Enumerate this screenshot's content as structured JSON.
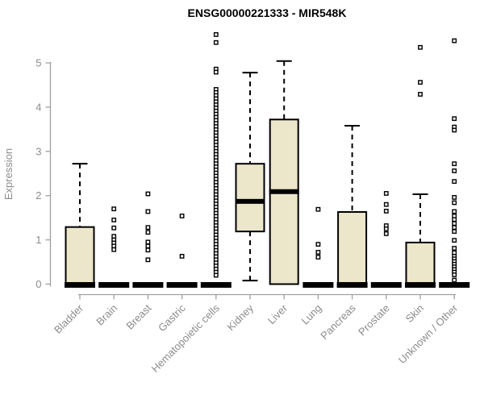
{
  "chart_data": {
    "type": "boxplot",
    "title": "ENSG00000221333 - MIR548K",
    "xlabel": "",
    "ylabel": "Expression",
    "ylim": [
      0,
      5.7
    ],
    "yticks": [
      0,
      1,
      2,
      3,
      4,
      5
    ],
    "grid": false,
    "legend": "none",
    "colors": {
      "box_fill": "#ece6cb",
      "box_stroke": "#000000",
      "median": "#000000",
      "axis_line": "#a0a0a0",
      "axis_text": "#8c8c8c",
      "outlier_fill": "#ffffff",
      "outlier_stroke": "#000000",
      "title": "#000000"
    },
    "categories": [
      "Bladder",
      "Brain",
      "Breast",
      "Gastric",
      "Hematopoietic cells",
      "Kidney",
      "Liver",
      "Lung",
      "Pancreas",
      "Prostate",
      "Skin",
      "Unknown / Other"
    ],
    "series": [
      {
        "name": "Bladder",
        "low": 0,
        "q1": 0,
        "median": 0,
        "q3": 1.29,
        "high": 2.72,
        "outliers": []
      },
      {
        "name": "Brain",
        "low": 0,
        "q1": 0,
        "median": 0,
        "q3": 0,
        "high": 0,
        "outliers": [
          1.7,
          1.45,
          1.27,
          1.08,
          1.0,
          0.93,
          0.86,
          0.78
        ]
      },
      {
        "name": "Breast",
        "low": 0,
        "q1": 0,
        "median": 0,
        "q3": 0,
        "high": 0,
        "outliers": [
          2.04,
          1.64,
          1.28,
          1.17,
          0.95,
          0.86,
          0.77,
          0.55
        ]
      },
      {
        "name": "Gastric",
        "low": 0,
        "q1": 0,
        "median": 0,
        "q3": 0,
        "high": 0,
        "outliers": [
          1.54,
          0.63
        ]
      },
      {
        "name": "Hematopoietic cells",
        "low": 0,
        "q1": 0,
        "median": 0,
        "q3": 0,
        "high": 0,
        "outliers": [
          5.64,
          5.46,
          4.86,
          4.79,
          4.4,
          4.33,
          4.26,
          4.19,
          4.12,
          4.05,
          3.98,
          3.91,
          3.84,
          3.77,
          3.7,
          3.63,
          3.56,
          3.49,
          3.42,
          3.35,
          3.28,
          3.21,
          3.14,
          3.07,
          3.0,
          2.93,
          2.86,
          2.79,
          2.72,
          2.65,
          2.58,
          2.51,
          2.44,
          2.37,
          2.3,
          2.23,
          2.16,
          2.09,
          2.02,
          1.95,
          1.88,
          1.81,
          1.74,
          1.67,
          1.6,
          1.53,
          1.46,
          1.39,
          1.32,
          1.25,
          1.18,
          1.11,
          1.04,
          0.97,
          0.9,
          0.83,
          0.76,
          0.69,
          0.62,
          0.55,
          0.48,
          0.41,
          0.34,
          0.27,
          0.2
        ]
      },
      {
        "name": "Kidney",
        "low": 0.08,
        "q1": 1.19,
        "median": 1.87,
        "q3": 2.72,
        "high": 4.78,
        "outliers": []
      },
      {
        "name": "Liver",
        "low": 0,
        "q1": 0,
        "median": 2.09,
        "q3": 3.72,
        "high": 5.04,
        "outliers": []
      },
      {
        "name": "Lung",
        "low": 0,
        "q1": 0,
        "median": 0,
        "q3": 0,
        "high": 0,
        "outliers": [
          1.69,
          0.9,
          0.72,
          0.61
        ]
      },
      {
        "name": "Pancreas",
        "low": 0,
        "q1": 0,
        "median": 0,
        "q3": 1.63,
        "high": 3.58,
        "outliers": []
      },
      {
        "name": "Prostate",
        "low": 0,
        "q1": 0,
        "median": 0,
        "q3": 0,
        "high": 0,
        "outliers": [
          2.05,
          1.8,
          1.65,
          1.32,
          1.25,
          1.14
        ]
      },
      {
        "name": "Skin",
        "low": 0,
        "q1": 0,
        "median": 0,
        "q3": 0.94,
        "high": 2.03,
        "outliers": [
          5.35,
          4.56,
          4.29
        ]
      },
      {
        "name": "Unknown / Other",
        "low": 0,
        "q1": 0,
        "median": 0,
        "q3": 0,
        "high": 0,
        "outliers": [
          5.5,
          3.74,
          3.55,
          3.48,
          2.72,
          2.56,
          2.32,
          1.96,
          1.84,
          1.64,
          1.54,
          1.46,
          1.37,
          1.28,
          1.19,
          0.99,
          0.81,
          0.71,
          0.63,
          0.57,
          0.51,
          0.45,
          0.39,
          0.33,
          0.27,
          0.21,
          0.09
        ]
      }
    ]
  }
}
